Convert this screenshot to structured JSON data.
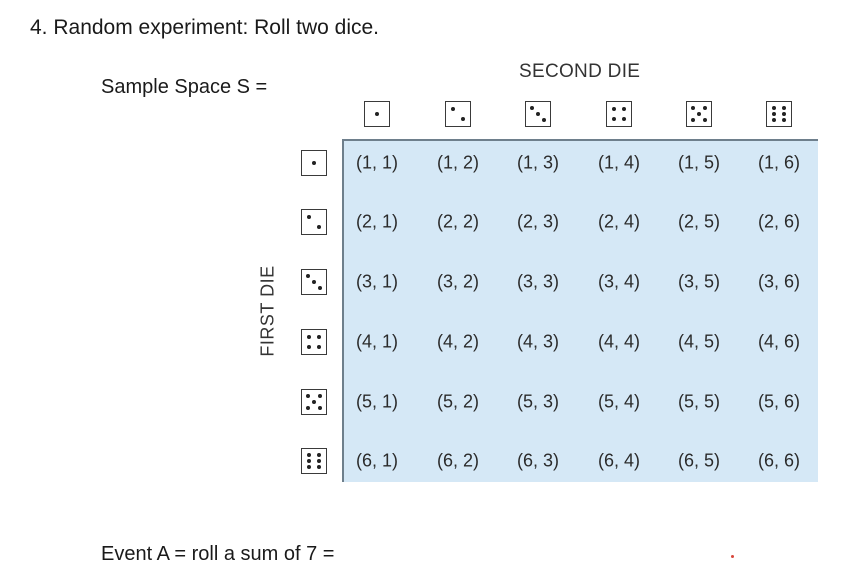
{
  "problem": {
    "title": "4. Random experiment: Roll two dice.",
    "sample_space_label": "Sample Space S =",
    "event_label": "Event A = roll a sum of 7 ="
  },
  "table": {
    "column_header": "SECOND DIE",
    "row_header": "FIRST DIE",
    "column_dice": [
      1,
      2,
      3,
      4,
      5,
      6
    ],
    "row_dice": [
      1,
      2,
      3,
      4,
      5,
      6
    ],
    "cells": [
      [
        "(1, 1)",
        "(1, 2)",
        "(1, 3)",
        "(1, 4)",
        "(1, 5)",
        "(1, 6)"
      ],
      [
        "(2, 1)",
        "(2, 2)",
        "(2, 3)",
        "(2, 4)",
        "(2, 5)",
        "(2, 6)"
      ],
      [
        "(3, 1)",
        "(3, 2)",
        "(3, 3)",
        "(3, 4)",
        "(3, 5)",
        "(3, 6)"
      ],
      [
        "(4, 1)",
        "(4, 2)",
        "(4, 3)",
        "(4, 4)",
        "(4, 5)",
        "(4, 6)"
      ],
      [
        "(5, 1)",
        "(5, 2)",
        "(5, 3)",
        "(5, 4)",
        "(5, 5)",
        "(5, 6)"
      ],
      [
        "(6, 1)",
        "(6, 2)",
        "(6, 3)",
        "(6, 4)",
        "(6, 5)",
        "(6, 6)"
      ]
    ],
    "grid_color": "#d5e8f6"
  },
  "icons": {
    "die_face": "die-face-icon"
  }
}
